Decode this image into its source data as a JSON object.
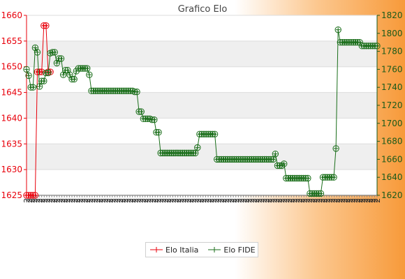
{
  "chart_data": {
    "type": "line",
    "title": "Grafico Elo",
    "grid": true,
    "legend_position": "bottom",
    "y_left": {
      "range": [
        1625,
        1660
      ],
      "ticks": [
        1625,
        1630,
        1635,
        1640,
        1645,
        1650,
        1655,
        1660
      ]
    },
    "y_right": {
      "range": [
        1620,
        1820
      ],
      "ticks": [
        1620,
        1640,
        1660,
        1680,
        1700,
        1720,
        1740,
        1760,
        1780,
        1800,
        1820
      ]
    },
    "x_tick_labels": [
      "2",
      "2",
      "2",
      "2",
      "2",
      "2",
      "2",
      "2",
      "2",
      "2",
      "2",
      "2",
      "2",
      "2",
      "2",
      "2",
      "2",
      "2",
      "2",
      "2",
      "2",
      "2",
      "2",
      "2",
      "2",
      "2",
      "2",
      "2",
      "2",
      "2",
      "2",
      "2",
      "2",
      "2",
      "2",
      "2",
      "2",
      "2",
      "2",
      "2",
      "2",
      "2",
      "2",
      "2",
      "2",
      "2",
      "2",
      "2",
      "2",
      "2",
      "2",
      "2",
      "2",
      "2",
      "2",
      "2",
      "2",
      "2",
      "2",
      "2",
      "2",
      "2",
      "2",
      "2",
      "2",
      "2",
      "2",
      "2",
      "2",
      "2",
      "2",
      "2",
      "2",
      "2",
      "2",
      "2",
      "2",
      "2",
      "2",
      "2",
      "2",
      "2",
      "2",
      "2",
      "2",
      "2",
      "2",
      "2",
      "2",
      "2",
      "2",
      "2",
      "2",
      "2",
      "2",
      "2",
      "2",
      "2",
      "2",
      "2",
      "2",
      "2",
      "2",
      "2",
      "2",
      "2",
      "2",
      "2",
      "2",
      "2",
      "2",
      "2",
      "2",
      "2",
      "2",
      "2",
      "2",
      "2",
      "2",
      "2",
      "2",
      "2",
      "2",
      "2",
      "2",
      "2",
      "2",
      "2",
      "2",
      "2",
      "2",
      "2",
      "2",
      "2",
      "2",
      "2",
      "2",
      "2",
      "2",
      "2"
    ],
    "series": [
      {
        "name": "Elo Italia",
        "axis": "left",
        "color": "#e8000b",
        "values": [
          1625,
          1625,
          1625,
          1625,
          1625,
          1649,
          1649,
          1649,
          1658,
          1658,
          1649,
          1649
        ]
      },
      {
        "name": "Elo FIDE",
        "axis": "right",
        "color": "#1a6e1a",
        "values": [
          1760,
          1753,
          1740,
          1740,
          1784,
          1779,
          1741,
          1747,
          1747,
          1756,
          1756,
          1778,
          1779,
          1779,
          1767,
          1772,
          1772,
          1754,
          1759,
          1759,
          1754,
          1749,
          1749,
          1758,
          1761,
          1761,
          1761,
          1761,
          1761,
          1754,
          1736,
          1736,
          1736,
          1736,
          1736,
          1736,
          1736,
          1736,
          1736,
          1736,
          1736,
          1736,
          1736,
          1736,
          1736,
          1736,
          1736,
          1736,
          1736,
          1736,
          1735,
          1735,
          1713,
          1713,
          1705,
          1705,
          1705,
          1705,
          1704,
          1704,
          1690,
          1690,
          1667,
          1667,
          1667,
          1667,
          1667,
          1667,
          1667,
          1667,
          1667,
          1667,
          1667,
          1667,
          1667,
          1667,
          1667,
          1667,
          1667,
          1673,
          1688,
          1688,
          1688,
          1688,
          1688,
          1688,
          1688,
          1688,
          1660,
          1660,
          1660,
          1660,
          1660,
          1660,
          1660,
          1660,
          1660,
          1660,
          1660,
          1660,
          1660,
          1660,
          1660,
          1660,
          1660,
          1660,
          1660,
          1660,
          1660,
          1660,
          1660,
          1660,
          1660,
          1660,
          1660,
          1666,
          1653,
          1653,
          1653,
          1655,
          1639,
          1639,
          1639,
          1639,
          1639,
          1639,
          1639,
          1639,
          1639,
          1639,
          1639,
          1622,
          1622,
          1622,
          1622,
          1622,
          1622,
          1640,
          1640,
          1640,
          1640,
          1640,
          1640,
          1672,
          1804,
          1790,
          1790,
          1790,
          1790,
          1790,
          1790,
          1790,
          1790,
          1790,
          1790,
          1786,
          1786,
          1786,
          1786,
          1786,
          1786,
          1786,
          1786
        ]
      }
    ]
  }
}
